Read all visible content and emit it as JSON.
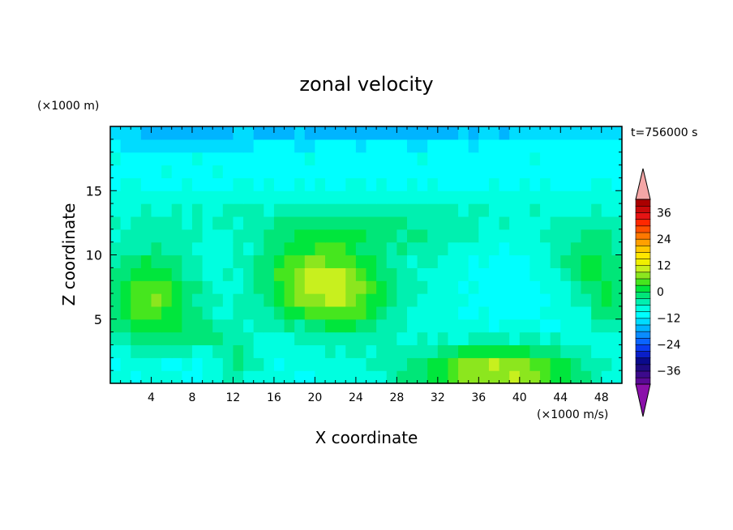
{
  "chart_data": {
    "type": "heatmap",
    "title": "zonal velocity",
    "xlabel": "X coordinate",
    "ylabel": "Z coordinate",
    "x_unit": "(×1000 m/s)",
    "y_unit": "(×1000 m)",
    "time_label": "t=756000 s",
    "xlim": [
      0,
      50
    ],
    "ylim": [
      0,
      20
    ],
    "x_ticks": [
      4,
      8,
      12,
      16,
      20,
      24,
      28,
      32,
      36,
      40,
      44,
      48
    ],
    "y_ticks": [
      5,
      10,
      15
    ],
    "colorbar": {
      "min": -42,
      "max": 42,
      "step": 3,
      "tick_values": [
        -36,
        -24,
        -12,
        0,
        12,
        24,
        36
      ],
      "tick_labels": [
        "−36",
        "−24",
        "−12",
        "0",
        "12",
        "24",
        "36"
      ],
      "over_color": "#f4a6a6",
      "under_color": "#8a10aa",
      "colors": [
        "#5a0a96",
        "#3c0a8c",
        "#1e0a82",
        "#0a0a8c",
        "#0a1ec8",
        "#0a3cf0",
        "#0a64ff",
        "#0a8cff",
        "#00b4ff",
        "#00dcff",
        "#00ffff",
        "#00ffe0",
        "#00f0b0",
        "#00e678",
        "#00e63c",
        "#46e61e",
        "#8ce61e",
        "#c8f01e",
        "#f0f000",
        "#ffe600",
        "#ffc800",
        "#ffa000",
        "#ff7800",
        "#ff5000",
        "#ff2800",
        "#e61414",
        "#c80a0a",
        "#aa0000"
      ]
    },
    "field": {
      "nx": 50,
      "nz": 20,
      "background_value": -9,
      "features": [
        {
          "x": 27,
          "z": 19.4,
          "rx": 28,
          "rz": 0.9,
          "amp": -7
        },
        {
          "x": 6,
          "z": 19.0,
          "rx": 6,
          "rz": 0.8,
          "amp": -5
        },
        {
          "x": 27,
          "z": 16.5,
          "rx": 30,
          "rz": 1.6,
          "amp": -1.5
        },
        {
          "x": 25,
          "z": 13.0,
          "rx": 30,
          "rz": 2.0,
          "amp": 3.5
        },
        {
          "x": 27,
          "z": 11.5,
          "rx": 10,
          "rz": 1.6,
          "amp": 4
        },
        {
          "x": 4,
          "z": 6.5,
          "rx": 4.5,
          "rz": 4.0,
          "amp": 15
        },
        {
          "x": 10,
          "z": 3.8,
          "rx": 3.5,
          "rz": 1.5,
          "amp": 5
        },
        {
          "x": 20,
          "z": 8.0,
          "rx": 5.5,
          "rz": 3.4,
          "amp": 18
        },
        {
          "x": 24,
          "z": 6.0,
          "rx": 4.0,
          "rz": 2.8,
          "amp": 7
        },
        {
          "x": 12.5,
          "z": 1.5,
          "rx": 2.0,
          "rz": 1.5,
          "amp": 7
        },
        {
          "x": 38,
          "z": 1.0,
          "rx": 8.5,
          "rz": 2.0,
          "amp": 19
        },
        {
          "x": 47,
          "z": 9.5,
          "rx": 3.5,
          "rz": 2.5,
          "amp": 10
        },
        {
          "x": 49,
          "z": 6.0,
          "rx": 2.5,
          "rz": 2.0,
          "amp": 8
        },
        {
          "x": 5,
          "z": 1.5,
          "rx": 5.0,
          "rz": 1.2,
          "amp": -3
        },
        {
          "x": 30,
          "z": 8.0,
          "rx": 6.0,
          "rz": 2.5,
          "amp": 2
        },
        {
          "x": 38,
          "z": 8.5,
          "rx": 4.0,
          "rz": 3.5,
          "amp": -2
        }
      ]
    }
  }
}
